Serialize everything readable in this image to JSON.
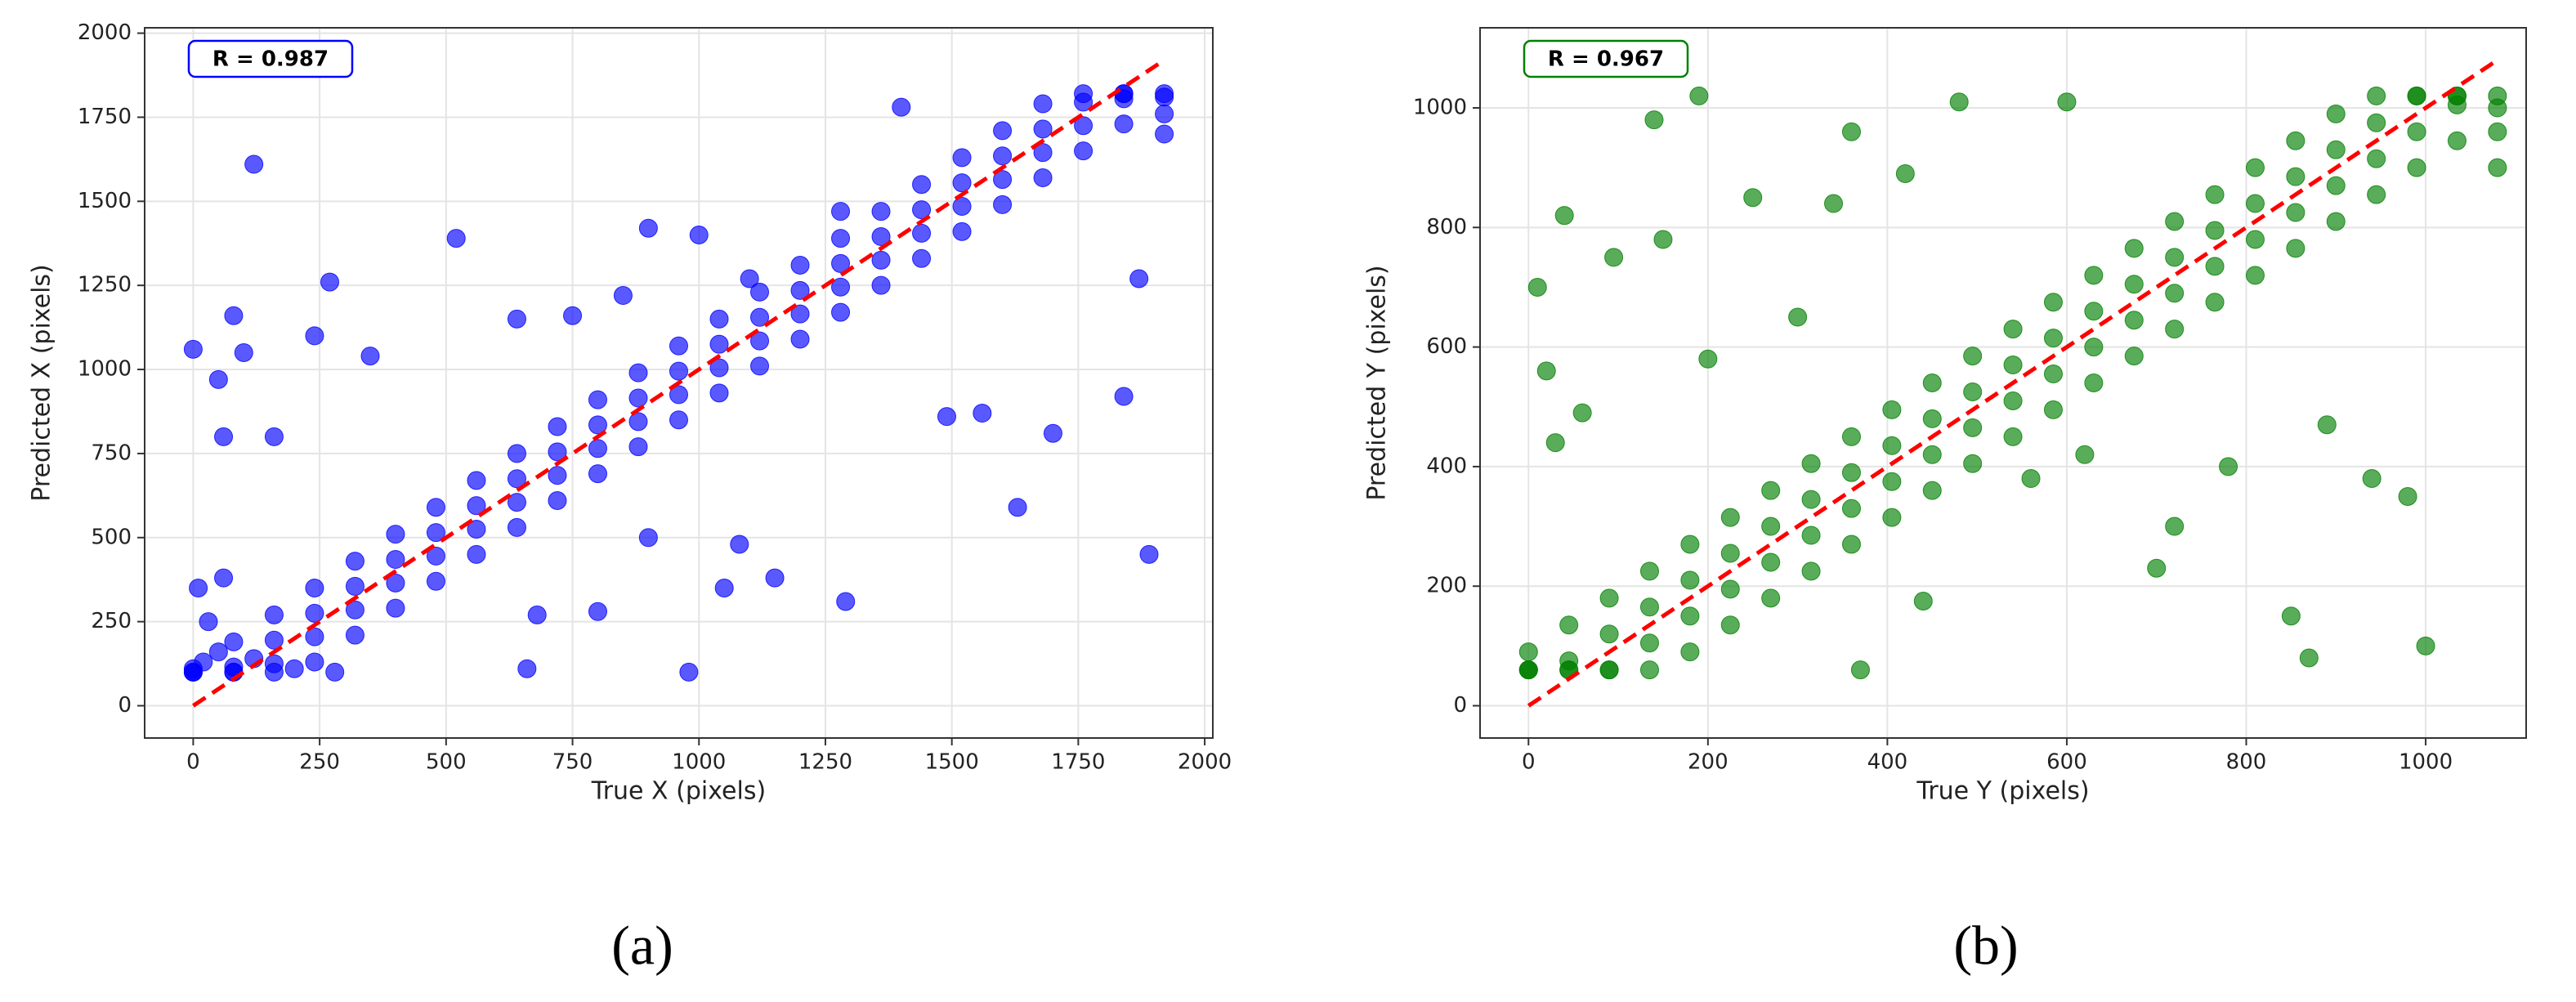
{
  "chart_data": [
    {
      "type": "scatter",
      "xlabel": "True X (pixels)",
      "ylabel": "Predicted X (pixels)",
      "annotation": "R = 0.987",
      "annotation_color": "#0000ff",
      "caption": "(a)",
      "color": "#0000ff",
      "grid": true,
      "xlim": [
        -96,
        2016
      ],
      "ylim": [
        -96,
        2016
      ],
      "xticks": [
        0,
        250,
        500,
        750,
        1000,
        1250,
        1500,
        1750,
        2000
      ],
      "yticks": [
        0,
        250,
        500,
        750,
        1000,
        1250,
        1500,
        1750,
        2000
      ],
      "reference_line": {
        "x": [
          0,
          1920
        ],
        "y": [
          0,
          1920
        ],
        "color": "#ff0000"
      },
      "x": [
        0,
        0,
        0,
        0,
        80,
        80,
        80,
        80,
        160,
        160,
        160,
        160,
        240,
        240,
        240,
        240,
        320,
        320,
        320,
        320,
        400,
        400,
        400,
        400,
        480,
        480,
        480,
        480,
        560,
        560,
        560,
        560,
        640,
        640,
        640,
        640,
        720,
        720,
        720,
        720,
        800,
        800,
        800,
        800,
        880,
        880,
        880,
        880,
        960,
        960,
        960,
        960,
        1040,
        1040,
        1040,
        1040,
        1120,
        1120,
        1120,
        1120,
        1200,
        1200,
        1200,
        1200,
        1280,
        1280,
        1280,
        1280,
        1360,
        1360,
        1360,
        1360,
        1440,
        1440,
        1440,
        1440,
        1520,
        1520,
        1520,
        1520,
        1600,
        1600,
        1600,
        1600,
        1680,
        1680,
        1680,
        1680,
        1760,
        1760,
        1760,
        1760,
        1840,
        1840,
        1840,
        1840,
        1920,
        1920,
        1920,
        1920,
        20,
        50,
        120,
        200,
        280,
        30,
        10,
        60,
        0,
        120,
        80,
        50,
        60,
        100,
        160,
        240,
        270,
        350,
        520,
        660,
        680,
        800,
        980,
        1000,
        900,
        1080,
        1150,
        1290,
        1490,
        1560,
        1630,
        1700,
        1840,
        1890,
        1870,
        1400,
        1100,
        1280,
        900,
        1050,
        750,
        640,
        850
      ],
      "values": [
        100,
        100,
        100,
        110,
        100,
        100,
        115,
        190,
        100,
        125,
        195,
        270,
        130,
        205,
        275,
        350,
        210,
        285,
        355,
        430,
        290,
        365,
        435,
        510,
        370,
        445,
        515,
        590,
        450,
        525,
        595,
        670,
        530,
        605,
        675,
        750,
        610,
        685,
        755,
        830,
        690,
        765,
        835,
        910,
        770,
        845,
        915,
        990,
        850,
        925,
        995,
        1070,
        930,
        1005,
        1075,
        1150,
        1010,
        1085,
        1155,
        1230,
        1090,
        1165,
        1235,
        1310,
        1170,
        1245,
        1315,
        1390,
        1250,
        1325,
        1395,
        1470,
        1330,
        1405,
        1475,
        1550,
        1410,
        1485,
        1555,
        1630,
        1490,
        1565,
        1635,
        1710,
        1570,
        1645,
        1715,
        1790,
        1650,
        1725,
        1795,
        1820,
        1730,
        1805,
        1820,
        1820,
        1700,
        1760,
        1810,
        1820,
        130,
        160,
        140,
        110,
        100,
        250,
        350,
        380,
        1060,
        1610,
        1160,
        970,
        800,
        1050,
        800,
        1100,
        1260,
        1040,
        1390,
        110,
        270,
        280,
        100,
        1400,
        1420,
        480,
        380,
        310,
        860,
        870,
        590,
        810,
        920,
        450,
        1270,
        1780,
        1270,
        1470,
        500,
        350,
        1160,
        1150,
        1220
      ]
    },
    {
      "type": "scatter",
      "xlabel": "True Y (pixels)",
      "ylabel": "Predicted Y (pixels)",
      "annotation": "R = 0.967",
      "annotation_color": "#008000",
      "caption": "(b)",
      "color": "#008000",
      "grid": true,
      "xlim": [
        -54,
        1112
      ],
      "ylim": [
        -54,
        1134
      ],
      "xticks": [
        0,
        200,
        400,
        600,
        800,
        1000
      ],
      "yticks": [
        0,
        200,
        400,
        600,
        800,
        1000
      ],
      "reference_line": {
        "x": [
          0,
          1080
        ],
        "y": [
          0,
          1080
        ],
        "color": "#ff0000"
      },
      "x": [
        0,
        0,
        0,
        0,
        45,
        45,
        45,
        45,
        90,
        90,
        90,
        90,
        135,
        135,
        135,
        135,
        180,
        180,
        180,
        180,
        225,
        225,
        225,
        225,
        270,
        270,
        270,
        270,
        315,
        315,
        315,
        315,
        360,
        360,
        360,
        360,
        405,
        405,
        405,
        405,
        450,
        450,
        450,
        450,
        495,
        495,
        495,
        495,
        540,
        540,
        540,
        540,
        585,
        585,
        585,
        585,
        630,
        630,
        630,
        630,
        675,
        675,
        675,
        675,
        720,
        720,
        720,
        720,
        765,
        765,
        765,
        765,
        810,
        810,
        810,
        810,
        855,
        855,
        855,
        855,
        900,
        900,
        900,
        900,
        945,
        945,
        945,
        945,
        990,
        990,
        990,
        990,
        1035,
        1035,
        1035,
        1035,
        1080,
        1080,
        1080,
        1080,
        10,
        40,
        95,
        140,
        190,
        20,
        30,
        60,
        360,
        480,
        600,
        340,
        250,
        420,
        700,
        720,
        780,
        850,
        870,
        890,
        980,
        1000,
        940,
        370,
        440,
        150,
        560,
        620,
        300,
        200
      ],
      "values": [
        60,
        60,
        60,
        90,
        60,
        60,
        75,
        135,
        60,
        60,
        120,
        180,
        60,
        105,
        165,
        225,
        90,
        150,
        210,
        270,
        135,
        195,
        255,
        315,
        180,
        240,
        300,
        360,
        225,
        285,
        345,
        405,
        270,
        330,
        390,
        450,
        315,
        375,
        435,
        495,
        360,
        420,
        480,
        540,
        405,
        465,
        525,
        585,
        450,
        510,
        570,
        630,
        495,
        555,
        615,
        675,
        540,
        600,
        660,
        720,
        585,
        645,
        705,
        765,
        630,
        690,
        750,
        810,
        675,
        735,
        795,
        855,
        720,
        780,
        840,
        900,
        765,
        825,
        885,
        945,
        810,
        870,
        930,
        990,
        855,
        915,
        975,
        1020,
        900,
        960,
        1020,
        1020,
        945,
        1005,
        1020,
        1020,
        900,
        960,
        1000,
        1020,
        700,
        820,
        750,
        980,
        1020,
        560,
        440,
        490,
        960,
        1010,
        1010,
        840,
        850,
        890,
        230,
        300,
        400,
        150,
        80,
        470,
        350,
        100,
        380,
        60,
        175,
        780,
        380,
        420,
        650,
        580
      ]
    }
  ]
}
